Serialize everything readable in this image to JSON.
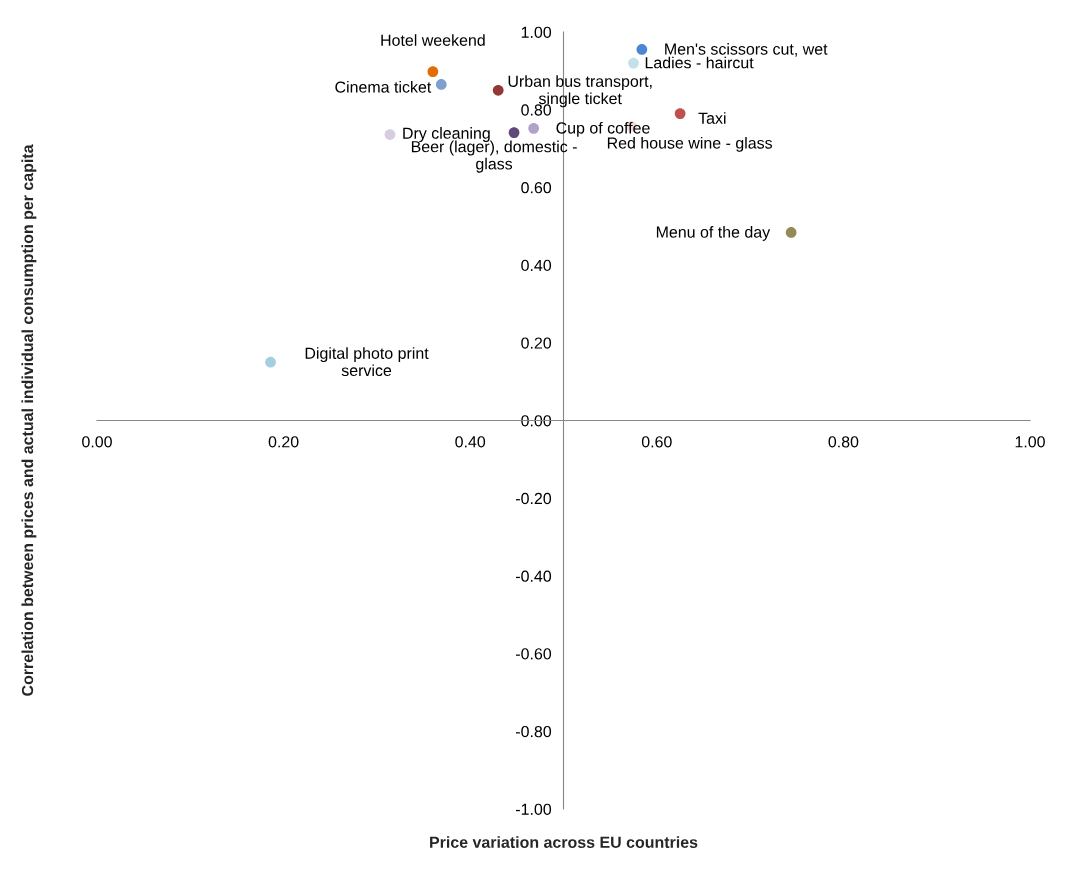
{
  "chart_data": {
    "type": "scatter",
    "xlabel": "Price variation across EU countries",
    "ylabel": "Correlation between prices and actual individual consumption per capita",
    "xlim": [
      0,
      1
    ],
    "ylim": [
      -1,
      1
    ],
    "xticks": [
      {
        "value": 0,
        "label": "0.00"
      },
      {
        "value": 0.2,
        "label": "0.20"
      },
      {
        "value": 0.4,
        "label": "0.40"
      },
      {
        "value": 0.6,
        "label": "0.60"
      },
      {
        "value": 0.8,
        "label": "0.80"
      },
      {
        "value": 1,
        "label": "1.00"
      }
    ],
    "yticks": [
      {
        "value": -1,
        "label": "-1.00"
      },
      {
        "value": -0.8,
        "label": "-0.80"
      },
      {
        "value": -0.6,
        "label": "-0.60"
      },
      {
        "value": -0.4,
        "label": "-0.40"
      },
      {
        "value": -0.2,
        "label": "-0.20"
      },
      {
        "value": 0,
        "label": "0.00"
      },
      {
        "value": 0.2,
        "label": "0.20"
      },
      {
        "value": 0.4,
        "label": "0.40"
      },
      {
        "value": 0.6,
        "label": "0.60"
      },
      {
        "value": 0.8,
        "label": "0.80"
      },
      {
        "value": 1,
        "label": "1.00"
      }
    ],
    "grid": false,
    "legend": false,
    "marker": "circle",
    "series": [
      {
        "name": "Hotel weekend",
        "color": "#e36c09",
        "x": [
          0.36
        ],
        "values": [
          0.898
        ]
      },
      {
        "name": "Cinema ticket",
        "color": "#7f9fcf",
        "x": [
          0.369
        ],
        "values": [
          0.865
        ]
      },
      {
        "name": "Urban bus transport,\nsingle ticket",
        "color": "#953735",
        "x": [
          0.43
        ],
        "values": [
          0.85
        ]
      },
      {
        "name": "Dry cleaning",
        "color": "#d6cde0",
        "x": [
          0.314
        ],
        "values": [
          0.736
        ]
      },
      {
        "name": "Beer (lager), domestic -\nglass",
        "color": "#5f497a",
        "x": [
          0.447
        ],
        "values": [
          0.741
        ]
      },
      {
        "name": "Cup of coffee",
        "color": "#b3a2c7",
        "x": [
          0.468
        ],
        "values": [
          0.752
        ]
      },
      {
        "name": "Men's scissors cut, wet",
        "color": "#4a86d4",
        "x": [
          0.584
        ],
        "values": [
          0.955
        ]
      },
      {
        "name": "Ladies - haircut",
        "color": "#c5e0e8",
        "x": [
          0.575
        ],
        "values": [
          0.92
        ]
      },
      {
        "name": "Taxi",
        "color": "#c0504d",
        "x": [
          0.625
        ],
        "values": [
          0.79
        ]
      },
      {
        "name": "Red house wine - glass",
        "color": "#f2dcdb",
        "x": [
          0.573
        ],
        "values": [
          0.757
        ]
      },
      {
        "name": "Menu of the day",
        "color": "#948a54",
        "x": [
          0.744
        ],
        "values": [
          0.484
        ]
      },
      {
        "name": "Digital photo print\nservice",
        "color": "#a5cfdf",
        "x": [
          0.186
        ],
        "values": [
          0.15
        ]
      }
    ]
  }
}
